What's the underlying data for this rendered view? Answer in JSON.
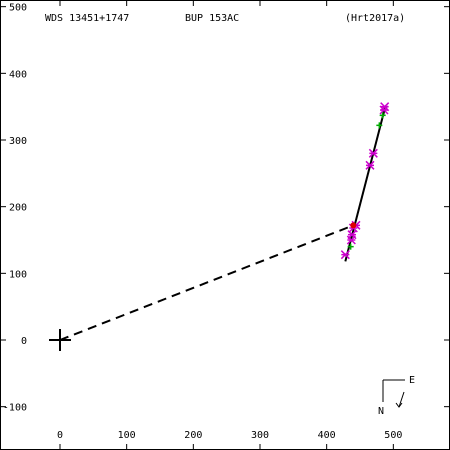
{
  "header": {
    "wds": "WDS 13451+1747",
    "discoverer": "BUP 153AC",
    "reference": "(Hrt2017a)"
  },
  "compass": {
    "east": "E",
    "north": "N"
  },
  "chart_data": {
    "type": "scatter",
    "xlim": [
      -90,
      585
    ],
    "ylim": [
      -165,
      510
    ],
    "xticks": [
      0,
      100,
      200,
      300,
      400,
      500
    ],
    "yticks": [
      -100,
      0,
      100,
      200,
      300,
      400,
      500
    ],
    "xtick_labels": [
      "0",
      "100",
      "200",
      "300",
      "400",
      "500"
    ],
    "ytick_labels": [
      "-100",
      "0",
      "100",
      "200",
      "300",
      "400",
      "500"
    ],
    "primary": [
      0,
      0
    ],
    "orbit_line": [
      [
        428,
        118
      ],
      [
        488,
        350
      ]
    ],
    "connector": [
      [
        0,
        0
      ],
      [
        440,
        172
      ]
    ],
    "series": [
      {
        "color": "#cc00cc",
        "marker": "asterisk",
        "points": [
          [
            428,
            128
          ],
          [
            437,
            150
          ],
          [
            438,
            158
          ],
          [
            440,
            168
          ],
          [
            444,
            172
          ],
          [
            465,
            262
          ],
          [
            470,
            280
          ],
          [
            486,
            345
          ],
          [
            487,
            350
          ]
        ]
      },
      {
        "color": "#00aa00",
        "marker": "plus",
        "points": [
          [
            436,
            140
          ],
          [
            479,
            322
          ],
          [
            484,
            337
          ]
        ]
      },
      {
        "color": "#dd0000",
        "marker": "dot",
        "points": [
          [
            440,
            172
          ]
        ]
      }
    ]
  }
}
